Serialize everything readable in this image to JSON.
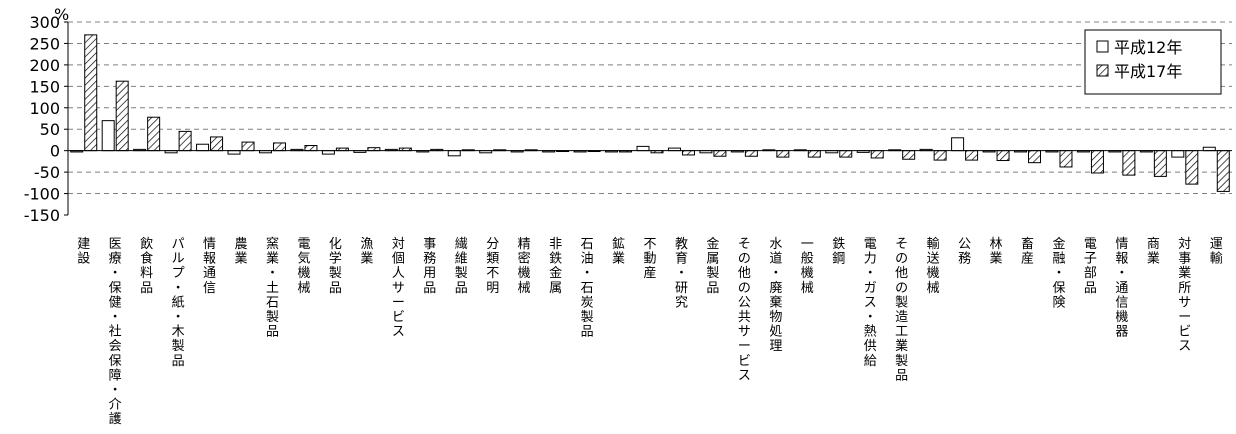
{
  "chart_data": {
    "type": "bar",
    "unit": "%",
    "ylim": [
      -150,
      300
    ],
    "yticks": [
      300,
      250,
      200,
      150,
      100,
      50,
      0,
      -50,
      -100,
      -150
    ],
    "grid": true,
    "legend_position": "top-right",
    "categories": [
      "建設",
      "医療・保健・社会保障・介護",
      "飲食料品",
      "パルプ・紙・木製品",
      "情報通信",
      "農業",
      "窯業・土石製品",
      "電気機械",
      "化学製品",
      "漁業",
      "対個人サービス",
      "事務用品",
      "繊維製品",
      "分類不明",
      "精密機械",
      "非鉄金属",
      "石油・石炭製品",
      "鉱業",
      "不動産",
      "教育・研究",
      "金属製品",
      "その他の公共サービス",
      "水道・廃棄物処理",
      "一般機械",
      "鉄鋼",
      "電力・ガス・熱供給",
      "その他の製造工業製品",
      "輸送機械",
      "公務",
      "林業",
      "畜産",
      "金融・保険",
      "電子部品",
      "情報・通信機器",
      "商業",
      "対事業所サービス",
      "運輸"
    ],
    "series": [
      {
        "name": "平成12年",
        "pattern": "white",
        "values": [
          -3,
          70,
          3,
          -5,
          15,
          -8,
          -5,
          3,
          -8,
          -4,
          3,
          -3,
          -12,
          -5,
          -3,
          -3,
          -3,
          -3,
          10,
          6,
          -5,
          -3,
          2,
          2,
          -5,
          -4,
          2,
          3,
          30,
          -3,
          -3,
          -3,
          -3,
          -3,
          -3,
          -15,
          8
        ]
      },
      {
        "name": "平成17年",
        "pattern": "hatch",
        "values": [
          270,
          162,
          78,
          45,
          32,
          20,
          18,
          12,
          6,
          7,
          6,
          3,
          2,
          2,
          2,
          -2,
          -2,
          -3,
          -5,
          -10,
          -13,
          -13,
          -15,
          -15,
          -15,
          -17,
          -20,
          -22,
          -22,
          -23,
          -28,
          -38,
          -52,
          -57,
          -60,
          -78,
          -95
        ]
      }
    ]
  }
}
